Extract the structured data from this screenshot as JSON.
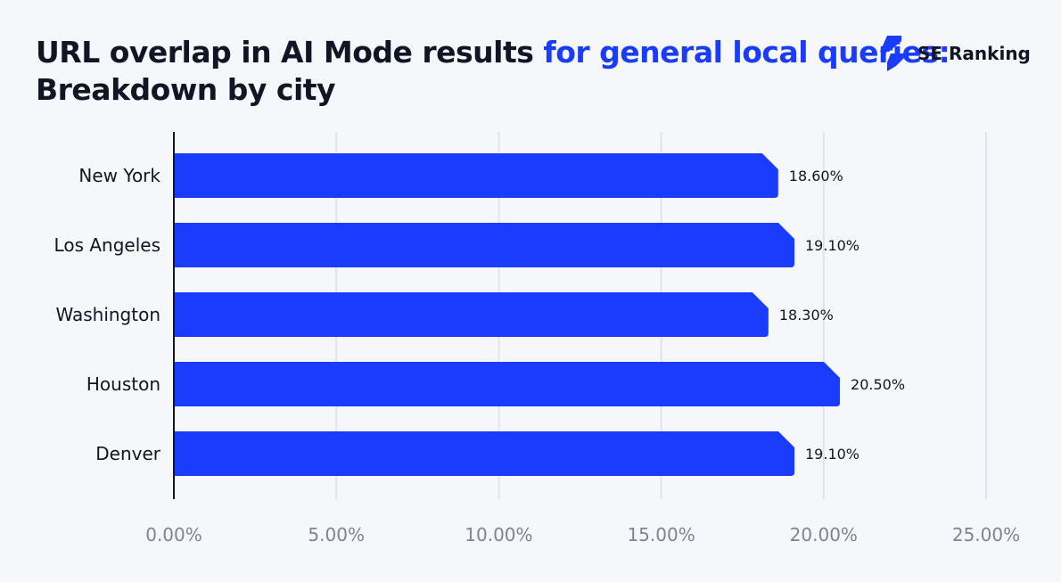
{
  "title": {
    "part1": "URL overlap in AI Mode results ",
    "part2": "for general local queries:",
    "part3": " Breakdown by city"
  },
  "logo": {
    "text": "SE Ranking"
  },
  "colors": {
    "bar": "#1a3cff",
    "title_highlight": "#1a3cff",
    "grid": "#dfe3ee",
    "tick_label": "#7c8496"
  },
  "chart_data": {
    "type": "bar",
    "orientation": "horizontal",
    "categories": [
      "New York",
      "Los Angeles",
      "Washington",
      "Houston",
      "Denver"
    ],
    "values": [
      18.6,
      19.1,
      18.3,
      20.5,
      19.1
    ],
    "value_labels": [
      "18.60%",
      "19.10%",
      "18.30%",
      "20.50%",
      "19.10%"
    ],
    "xlim": [
      0,
      25
    ],
    "xticks": [
      0,
      5,
      10,
      15,
      20,
      25
    ],
    "xtick_labels": [
      "0.00%",
      "5.00%",
      "10.00%",
      "15.00%",
      "20.00%",
      "25.00%"
    ],
    "grid": true,
    "xlabel": "",
    "ylabel": ""
  }
}
